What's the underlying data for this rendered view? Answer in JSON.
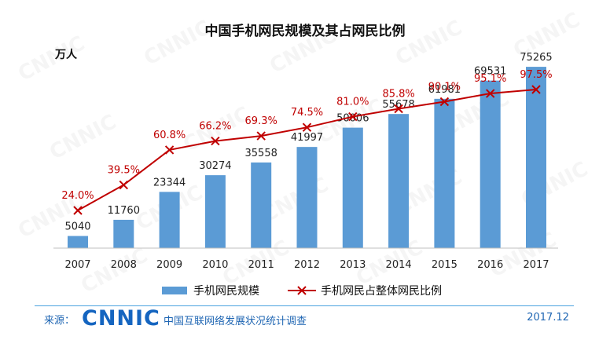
{
  "title": "中国手机网民规模及其占网民比例",
  "watermark": "CNNIC",
  "chart_data": {
    "type": "bar",
    "categories": [
      "2007",
      "2008",
      "2009",
      "2010",
      "2011",
      "2012",
      "2013",
      "2014",
      "2015",
      "2016",
      "2017"
    ],
    "y_unit": "万人",
    "series": [
      {
        "name": "手机网民规模",
        "type": "bar",
        "color": "#5b9bd5",
        "values": [
          5040,
          11760,
          23344,
          30274,
          35558,
          41997,
          50006,
          55678,
          61981,
          69531,
          75265
        ]
      },
      {
        "name": "手机网民占整体网民比例",
        "type": "line",
        "color": "#c00000",
        "values": [
          24.0,
          39.5,
          60.8,
          66.2,
          69.3,
          74.5,
          81.0,
          85.8,
          90.1,
          95.1,
          97.5
        ],
        "labels": [
          "24.0%",
          "39.5%",
          "60.8%",
          "66.2%",
          "69.3%",
          "74.5%",
          "81.0%",
          "85.8%",
          "90.1%",
          "95.1%",
          "97.5%"
        ]
      }
    ],
    "grid": false,
    "legend": "bottom"
  },
  "footer": {
    "source_label": "来源：",
    "logo_text": "CNNIC",
    "org": "中国互联网络发展状况统计调查",
    "date": "2017.12"
  }
}
